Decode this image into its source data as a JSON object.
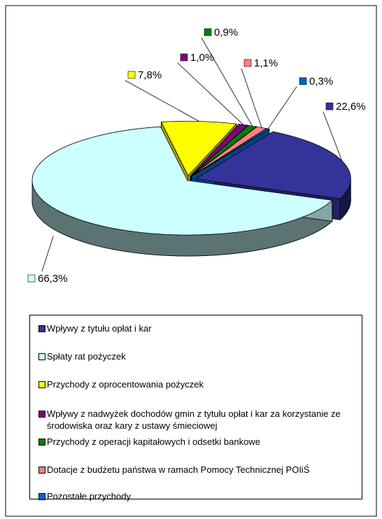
{
  "chart_data": {
    "type": "pie3d",
    "categories": [
      "Wpływy z tytułu opłat i kar",
      "Spłaty rat pożyczek",
      "Przychody z oprocentowania pożyczek",
      "Wpływy z nadwyżek dochodów gmin z tytułu opłat i kar za korzystanie ze środowiska oraz kary z ustawy śmieciowej",
      "Przychody z operacji kapitałowych i odsetki bankowe",
      "Dotacje z budżetu państwa w ramach Pomocy Technicznej POIiŚ",
      "Pozostałe przychody"
    ],
    "values": [
      22.6,
      66.3,
      7.8,
      1.0,
      0.9,
      1.1,
      0.3
    ],
    "value_labels": [
      "22,6%",
      "66,3%",
      "7,8%",
      "1,0%",
      "0,9%",
      "1,1%",
      "0,3%"
    ],
    "colors": [
      "#333399",
      "#ccffff",
      "#ffff00",
      "#800080",
      "#008000",
      "#ff8080",
      "#0066cc"
    ],
    "legend": "bottom"
  }
}
